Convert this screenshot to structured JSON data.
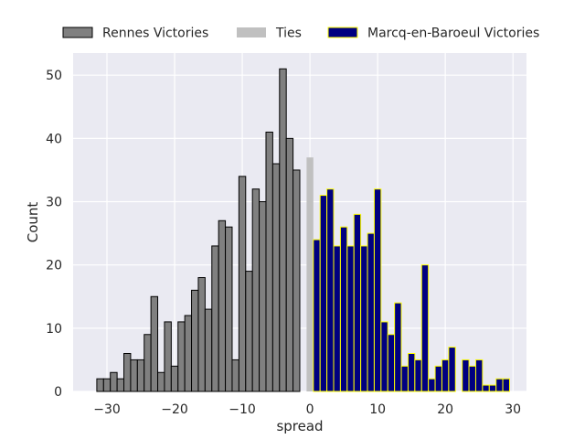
{
  "chart_data": {
    "type": "bar",
    "xlabel": "spread",
    "ylabel": "Count",
    "xlim": [
      -35,
      32
    ],
    "ylim": [
      0,
      53.5
    ],
    "x_ticks": [
      -30,
      -20,
      -10,
      0,
      10,
      20,
      30
    ],
    "y_ticks": [
      0,
      10,
      20,
      30,
      40,
      50
    ],
    "grid": true,
    "legend_placement": "top, above plot",
    "colors": {
      "background": "#eaeaf2",
      "grid": "#ffffff",
      "rennes_fill": "#808080",
      "rennes_edge": "#000000",
      "ties_fill": "#c0c0c0",
      "marcq_fill": "#000080",
      "marcq_edge": "#ffff00"
    },
    "series": [
      {
        "name": "Rennes Victories",
        "x": [
          -31,
          -30,
          -29,
          -28,
          -27,
          -26,
          -25,
          -24,
          -23,
          -22,
          -21,
          -20,
          -19,
          -18,
          -17,
          -16,
          -15,
          -14,
          -13,
          -12,
          -11,
          -10,
          -9,
          -8,
          -7,
          -6,
          -5,
          -4,
          -3,
          -2,
          -1
        ],
        "values": [
          2,
          2,
          3,
          2,
          6,
          5,
          5,
          9,
          15,
          3,
          11,
          4,
          11,
          12,
          16,
          18,
          13,
          23,
          27,
          26,
          5,
          34,
          19,
          32,
          30,
          41,
          36,
          51,
          40,
          35,
          0
        ]
      },
      {
        "name": "Ties",
        "x": [
          0
        ],
        "values": [
          37
        ]
      },
      {
        "name": "Marcq-en-Baroeul Victories",
        "x": [
          1,
          2,
          3,
          4,
          5,
          6,
          7,
          8,
          9,
          10,
          11,
          12,
          13,
          14,
          15,
          16,
          17,
          18,
          19,
          20,
          21,
          22,
          23,
          24,
          25,
          26,
          27,
          28,
          29,
          30
        ],
        "values": [
          24,
          31,
          32,
          23,
          26,
          23,
          28,
          23,
          25,
          32,
          11,
          9,
          14,
          4,
          6,
          5,
          20,
          2,
          4,
          5,
          7,
          0,
          5,
          4,
          5,
          1,
          1,
          2,
          2,
          0
        ]
      }
    ]
  }
}
